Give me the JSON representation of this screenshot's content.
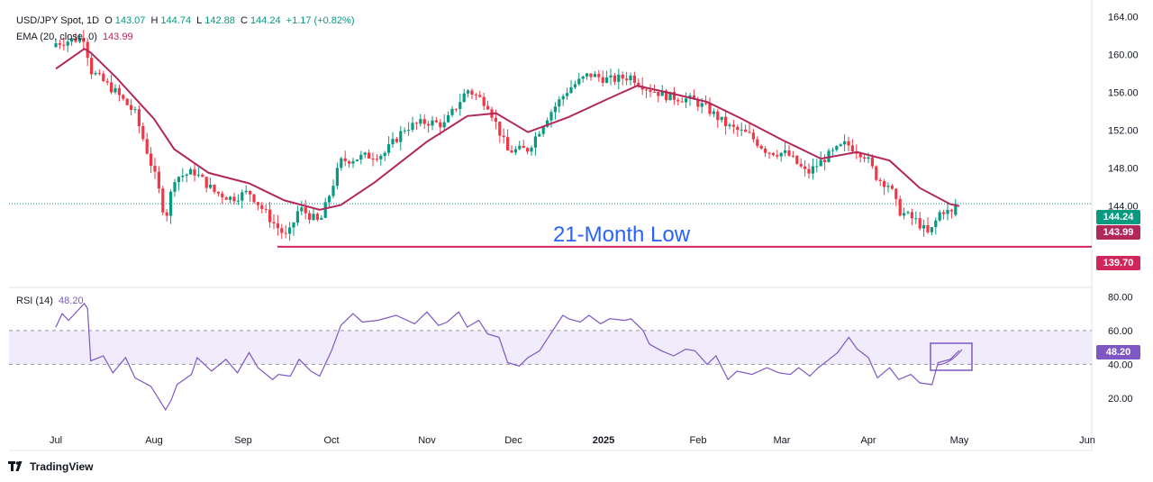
{
  "legend": {
    "symbol": "USD/JPY Spot, 1D",
    "o_label": "O",
    "open": "143.07",
    "h_label": "H",
    "high": "144.74",
    "l_label": "L",
    "low": "142.88",
    "c_label": "C",
    "close": "144.24",
    "change": "+1.17 (+0.82%)",
    "ema_label": "EMA (20, close, 0)",
    "ema_value": "143.99",
    "rsi_label": "RSI (14)",
    "rsi_value": "48.20"
  },
  "colors": {
    "up": "#089981",
    "down": "#f23645",
    "ema": "#b2285b",
    "rsi": "#7e57c2",
    "rsi_band": "#f1ecfb",
    "support": "#d0265c"
  },
  "price_tags": {
    "last": "144.24",
    "ema": "143.99",
    "support": "139.70",
    "rsi": "48.20"
  },
  "annotation": "21-Month Low",
  "footer": {
    "brand": "TradingView",
    "logo_icon": "tradingview-logo-icon"
  },
  "chart_data": [
    {
      "type": "candlestick",
      "title": "USD/JPY Spot, 1D",
      "ylim": [
        135.5,
        165
      ],
      "y_ticks": [
        "164.00",
        "160.00",
        "156.00",
        "152.00",
        "148.00",
        "144.00"
      ],
      "x_tick_labels": [
        "Jul",
        "Aug",
        "Sep",
        "Oct",
        "Nov",
        "Dec",
        "2025",
        "Feb",
        "Mar",
        "Apr",
        "May",
        "Jun"
      ],
      "ohlc_anchor_closes": [
        [
          "Jul 1",
          161.2
        ],
        [
          "Jul 10",
          161.8
        ],
        [
          "Jul 12",
          158.3
        ],
        [
          "Jul 20",
          156.0
        ],
        [
          "Jul 26",
          153.8
        ],
        [
          "Aug 2",
          146.5
        ],
        [
          "Aug 5",
          142.6
        ],
        [
          "Aug 8",
          147.0
        ],
        [
          "Aug 15",
          147.6
        ],
        [
          "Aug 22",
          145.5
        ],
        [
          "Aug 28",
          144.8
        ],
        [
          "Sep 3",
          145.5
        ],
        [
          "Sep 11",
          142.3
        ],
        [
          "Sep 16",
          140.6
        ],
        [
          "Sep 20",
          143.8
        ],
        [
          "Sep 27",
          142.2
        ],
        [
          "Oct 4",
          148.7
        ],
        [
          "Oct 11",
          149.2
        ],
        [
          "Oct 18",
          149.5
        ],
        [
          "Oct 25",
          152.3
        ],
        [
          "Nov 1",
          152.9
        ],
        [
          "Nov 7",
          152.6
        ],
        [
          "Nov 15",
          156.3
        ],
        [
          "Nov 22",
          154.8
        ],
        [
          "Nov 29",
          149.8
        ],
        [
          "Dec 6",
          150.0
        ],
        [
          "Dec 13",
          153.6
        ],
        [
          "Dec 20",
          156.4
        ],
        [
          "Dec 27",
          157.9
        ],
        [
          "Jan 3",
          157.3
        ],
        [
          "Jan 10",
          157.7
        ],
        [
          "Jan 15",
          156.5
        ],
        [
          "Jan 22",
          155.6
        ],
        [
          "Jan 30",
          155.2
        ],
        [
          "Feb 4",
          154.3
        ],
        [
          "Feb 11",
          152.4
        ],
        [
          "Feb 18",
          151.5
        ],
        [
          "Feb 24",
          149.8
        ],
        [
          "Mar 3",
          149.5
        ],
        [
          "Mar 10",
          147.4
        ],
        [
          "Mar 17",
          149.2
        ],
        [
          "Mar 24",
          150.6
        ],
        [
          "Mar 31",
          149.3
        ],
        [
          "Apr 4",
          146.9
        ],
        [
          "Apr 8",
          146.2
        ],
        [
          "Apr 11",
          143.5
        ],
        [
          "Apr 17",
          142.4
        ],
        [
          "Apr 21",
          140.9
        ],
        [
          "Apr 25",
          143.6
        ],
        [
          "Apr 30",
          143.1
        ],
        [
          "May 1",
          144.24
        ]
      ],
      "last": {
        "open": 143.07,
        "high": 144.74,
        "low": 142.88,
        "close": 144.24
      },
      "series": [
        {
          "name": "EMA (20, close, 0)",
          "last": 143.99,
          "values": [
            [
              "Jul 1",
              158.5
            ],
            [
              "Jul 10",
              160.6
            ],
            [
              "Jul 12",
              160.2
            ],
            [
              "Jul 20",
              157.6
            ],
            [
              "Aug 1",
              153.2
            ],
            [
              "Aug 8",
              150.0
            ],
            [
              "Aug 20",
              147.5
            ],
            [
              "Sep 3",
              146.4
            ],
            [
              "Sep 15",
              144.6
            ],
            [
              "Sep 27",
              143.6
            ],
            [
              "Oct 4",
              144.1
            ],
            [
              "Oct 15",
              146.5
            ],
            [
              "Nov 1",
              150.8
            ],
            [
              "Nov 15",
              153.5
            ],
            [
              "Nov 25",
              153.8
            ],
            [
              "Dec 6",
              151.8
            ],
            [
              "Dec 20",
              153.4
            ],
            [
              "Jan 3",
              155.4
            ],
            [
              "Jan 12",
              156.7
            ],
            [
              "Jan 22",
              156.0
            ],
            [
              "Feb 4",
              155.0
            ],
            [
              "Feb 15",
              153.3
            ],
            [
              "Mar 1",
              151.0
            ],
            [
              "Mar 15",
              149.0
            ],
            [
              "Mar 28",
              149.7
            ],
            [
              "Apr 8",
              148.8
            ],
            [
              "Apr 18",
              145.9
            ],
            [
              "Apr 28",
              144.2
            ],
            [
              "May 1",
              143.99
            ]
          ]
        }
      ],
      "horizontal_lines": [
        {
          "value": 139.7,
          "label": "139.70",
          "annotation": "21-Month Low"
        }
      ]
    },
    {
      "type": "line",
      "title": "RSI (14)",
      "ylim": [
        5,
        85
      ],
      "y_ticks": [
        "80.00",
        "60.00",
        "40.00",
        "20.00"
      ],
      "band": [
        40,
        60
      ],
      "series": [
        {
          "name": "RSI (14)",
          "last": 48.2,
          "values": [
            [
              "Jul 1",
              62
            ],
            [
              "Jul 3",
              70
            ],
            [
              "Jul 5",
              66
            ],
            [
              "Jul 8",
              72
            ],
            [
              "Jul 10",
              76
            ],
            [
              "Jul 11",
              73
            ],
            [
              "Jul 12",
              42
            ],
            [
              "Jul 16",
              45
            ],
            [
              "Jul 19",
              35
            ],
            [
              "Jul 23",
              44
            ],
            [
              "Jul 26",
              32
            ],
            [
              "Jul 31",
              27
            ],
            [
              "Aug 5",
              13
            ],
            [
              "Aug 7",
              19
            ],
            [
              "Aug 9",
              28
            ],
            [
              "Aug 14",
              34
            ],
            [
              "Aug 16",
              44
            ],
            [
              "Aug 21",
              36
            ],
            [
              "Aug 26",
              43
            ],
            [
              "Aug 30",
              35
            ],
            [
              "Sep 3",
              47
            ],
            [
              "Sep 6",
              38
            ],
            [
              "Sep 11",
              31
            ],
            [
              "Sep 13",
              34
            ],
            [
              "Sep 17",
              33
            ],
            [
              "Sep 20",
              43
            ],
            [
              "Sep 24",
              36
            ],
            [
              "Sep 27",
              33
            ],
            [
              "Oct 1",
              48
            ],
            [
              "Oct 4",
              63
            ],
            [
              "Oct 8",
              70
            ],
            [
              "Oct 11",
              65
            ],
            [
              "Oct 16",
              66
            ],
            [
              "Oct 22",
              69
            ],
            [
              "Oct 28",
              64
            ],
            [
              "Nov 1",
              71
            ],
            [
              "Nov 5",
              63
            ],
            [
              "Nov 8",
              65
            ],
            [
              "Nov 12",
              71
            ],
            [
              "Nov 15",
              62
            ],
            [
              "Nov 19",
              66
            ],
            [
              "Nov 22",
              58
            ],
            [
              "Nov 26",
              56
            ],
            [
              "Nov 29",
              41
            ],
            [
              "Dec 3",
              39
            ],
            [
              "Dec 6",
              44
            ],
            [
              "Dec 10",
              48
            ],
            [
              "Dec 13",
              56
            ],
            [
              "Dec 18",
              69
            ],
            [
              "Dec 20",
              67
            ],
            [
              "Dec 24",
              65
            ],
            [
              "Dec 27",
              69
            ],
            [
              "Dec 31",
              64
            ],
            [
              "Jan 3",
              67
            ],
            [
              "Jan 8",
              66
            ],
            [
              "Jan 10",
              67
            ],
            [
              "Jan 14",
              60
            ],
            [
              "Jan 16",
              52
            ],
            [
              "Jan 20",
              48
            ],
            [
              "Jan 24",
              45
            ],
            [
              "Jan 28",
              49
            ],
            [
              "Jan 31",
              48
            ],
            [
              "Feb 4",
              40
            ],
            [
              "Feb 7",
              45
            ],
            [
              "Feb 11",
              31
            ],
            [
              "Feb 14",
              36
            ],
            [
              "Feb 19",
              34
            ],
            [
              "Feb 24",
              38
            ],
            [
              "Feb 28",
              35
            ],
            [
              "Mar 4",
              34
            ],
            [
              "Mar 7",
              38
            ],
            [
              "Mar 11",
              33
            ],
            [
              "Mar 14",
              38
            ],
            [
              "Mar 18",
              43
            ],
            [
              "Mar 21",
              47
            ],
            [
              "Mar 25",
              56
            ],
            [
              "Mar 28",
              49
            ],
            [
              "Apr 1",
              44
            ],
            [
              "Apr 4",
              32
            ],
            [
              "Apr 8",
              38
            ],
            [
              "Apr 11",
              31
            ],
            [
              "Apr 15",
              34
            ],
            [
              "Apr 18",
              29
            ],
            [
              "Apr 22",
              28
            ],
            [
              "Apr 24",
              41
            ],
            [
              "Apr 28",
              43
            ],
            [
              "May 1",
              48.2
            ]
          ]
        }
      ]
    }
  ]
}
